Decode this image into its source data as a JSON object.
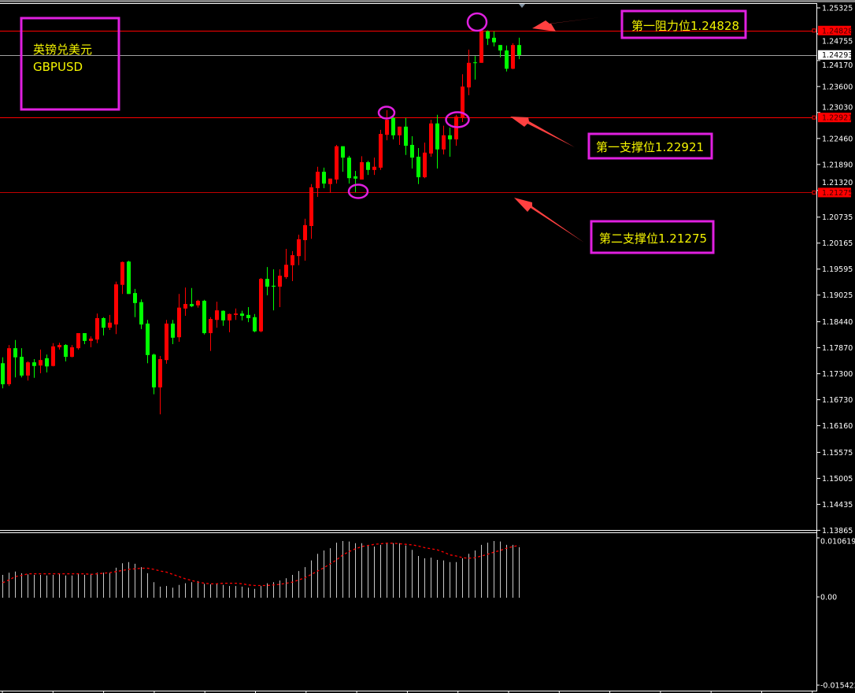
{
  "window": {
    "symbol_cn": "英镑兑美元",
    "symbol": "GBPUSD"
  },
  "annotations": {
    "resistance_1": {
      "label": "第一阻力位1.24828",
      "price": 1.24828
    },
    "support_1": {
      "label": "第一支撑位1.22921",
      "price": 1.22921
    },
    "support_2": {
      "label": "第二支撑位1.21275",
      "price": 1.21275
    },
    "current_price": {
      "label": "1.24293",
      "price": 1.24293
    },
    "box_color": "#e020e0",
    "text_color": "#f5f500",
    "arrow_color": "#ff4040",
    "line_color": "#ff0000"
  },
  "chart_data": [
    {
      "type": "candlestick",
      "title": "",
      "up_color": "#ff0000",
      "down_color": "#00ff00",
      "ylim": [
        1.1375,
        1.2545
      ],
      "grid": false,
      "yticks": [
        "1.25325",
        "1.24755",
        "1.24170",
        "1.23600",
        "1.23030",
        "1.22460",
        "1.21890",
        "1.21320",
        "1.20735",
        "1.20165",
        "1.19595",
        "1.19025",
        "1.18440",
        "1.17870",
        "1.17300",
        "1.16730",
        "1.16160",
        "1.15575",
        "1.15005",
        "1.14435",
        "1.13865"
      ],
      "ohlc": [
        [
          1.1753,
          1.1766,
          1.1698,
          1.1707
        ],
        [
          1.1707,
          1.1793,
          1.1703,
          1.1786
        ],
        [
          1.1786,
          1.1804,
          1.1722,
          1.1766
        ],
        [
          1.1767,
          1.1786,
          1.1722,
          1.1726
        ],
        [
          1.1726,
          1.1757,
          1.1715,
          1.1755
        ],
        [
          1.1755,
          1.1762,
          1.1721,
          1.1747
        ],
        [
          1.1748,
          1.1783,
          1.1731,
          1.176
        ],
        [
          1.1764,
          1.1772,
          1.1733,
          1.1746
        ],
        [
          1.1747,
          1.1797,
          1.1746,
          1.179
        ],
        [
          1.1788,
          1.1798,
          1.1783,
          1.1793
        ],
        [
          1.1793,
          1.1795,
          1.1757,
          1.1767
        ],
        [
          1.1767,
          1.1793,
          1.1766,
          1.1788
        ],
        [
          1.1786,
          1.1819,
          1.1783,
          1.1819
        ],
        [
          1.1819,
          1.1819,
          1.1795,
          1.1802
        ],
        [
          1.1802,
          1.1812,
          1.1788,
          1.1807
        ],
        [
          1.1805,
          1.1862,
          1.1797,
          1.1852
        ],
        [
          1.1852,
          1.1854,
          1.1814,
          1.1831
        ],
        [
          1.1831,
          1.1859,
          1.1826,
          1.1842
        ],
        [
          1.1838,
          1.1932,
          1.1817,
          1.1926
        ],
        [
          1.1925,
          1.1976,
          1.1905,
          1.1975
        ],
        [
          1.1976,
          1.1978,
          1.1905,
          1.1905
        ],
        [
          1.1907,
          1.1916,
          1.1854,
          1.1885
        ],
        [
          1.1887,
          1.1893,
          1.1828,
          1.1838
        ],
        [
          1.184,
          1.1848,
          1.1753,
          1.1771
        ],
        [
          1.1772,
          1.1774,
          1.1685,
          1.17
        ],
        [
          1.17,
          1.1769,
          1.1641,
          1.1762
        ],
        [
          1.176,
          1.1848,
          1.1752,
          1.184
        ],
        [
          1.184,
          1.1848,
          1.1795,
          1.1809
        ],
        [
          1.181,
          1.1905,
          1.18,
          1.1875
        ],
        [
          1.1873,
          1.1919,
          1.1857,
          1.1883
        ],
        [
          1.1883,
          1.1918,
          1.1876,
          1.1878
        ],
        [
          1.188,
          1.1892,
          1.1875,
          1.189
        ],
        [
          1.189,
          1.1892,
          1.1816,
          1.1819
        ],
        [
          1.1819,
          1.1854,
          1.178,
          1.185
        ],
        [
          1.1848,
          1.1888,
          1.1831,
          1.1869
        ],
        [
          1.1868,
          1.1869,
          1.1835,
          1.1847
        ],
        [
          1.1847,
          1.1862,
          1.1821,
          1.1861
        ],
        [
          1.1859,
          1.1873,
          1.1848,
          1.1862
        ],
        [
          1.1862,
          1.1868,
          1.1847,
          1.1857
        ],
        [
          1.1859,
          1.1876,
          1.1843,
          1.1852
        ],
        [
          1.1854,
          1.1861,
          1.1821,
          1.1823
        ],
        [
          1.1823,
          1.194,
          1.1821,
          1.1938
        ],
        [
          1.1938,
          1.1964,
          1.1902,
          1.1921
        ],
        [
          1.1923,
          1.1959,
          1.1869,
          1.1921
        ],
        [
          1.1921,
          1.1959,
          1.1876,
          1.1945
        ],
        [
          1.1942,
          1.2004,
          1.1938,
          1.1969
        ],
        [
          1.1968,
          1.1999,
          1.1933,
          1.199
        ],
        [
          1.1988,
          1.2035,
          1.1968,
          1.2025
        ],
        [
          1.2023,
          1.207,
          1.1978,
          1.2056
        ],
        [
          1.2054,
          1.2146,
          1.2026,
          1.2139
        ],
        [
          1.2137,
          1.2184,
          1.2118,
          1.2173
        ],
        [
          1.2173,
          1.2182,
          1.2137,
          1.2147
        ],
        [
          1.2146,
          1.2158,
          1.2127,
          1.2158
        ],
        [
          1.2156,
          1.2232,
          1.2147,
          1.2229
        ],
        [
          1.2229,
          1.2229,
          1.2173,
          1.2204
        ],
        [
          1.2204,
          1.2208,
          1.2147,
          1.2159
        ],
        [
          1.2163,
          1.2175,
          1.2128,
          1.2158
        ],
        [
          1.2156,
          1.2207,
          1.2156,
          1.2194
        ],
        [
          1.2194,
          1.2197,
          1.2166,
          1.2177
        ],
        [
          1.2177,
          1.2204,
          1.2166,
          1.2184
        ],
        [
          1.2182,
          1.2265,
          1.2177,
          1.2256
        ],
        [
          1.2254,
          1.2308,
          1.2242,
          1.2287
        ],
        [
          1.2291,
          1.2293,
          1.2244,
          1.2253
        ],
        [
          1.2253,
          1.2272,
          1.2232,
          1.2272
        ],
        [
          1.2272,
          1.2291,
          1.221,
          1.223
        ],
        [
          1.2232,
          1.2251,
          1.218,
          1.2204
        ],
        [
          1.2206,
          1.2225,
          1.2146,
          1.2161
        ],
        [
          1.2161,
          1.2237,
          1.2159,
          1.2215
        ],
        [
          1.2213,
          1.2287,
          1.2206,
          1.2279
        ],
        [
          1.2279,
          1.2298,
          1.218,
          1.2222
        ],
        [
          1.2222,
          1.2274,
          1.2211,
          1.2253
        ],
        [
          1.2253,
          1.227,
          1.2206,
          1.2244
        ],
        [
          1.2244,
          1.2298,
          1.223,
          1.2294
        ],
        [
          1.2291,
          1.2387,
          1.2282,
          1.236
        ],
        [
          1.2358,
          1.2441,
          1.2341,
          1.2412
        ],
        [
          1.2413,
          1.2427,
          1.2375,
          1.2412
        ],
        [
          1.2412,
          1.2483,
          1.2412,
          1.2483
        ],
        [
          1.2481,
          1.2483,
          1.2451,
          1.2465
        ],
        [
          1.2467,
          1.2481,
          1.2448,
          1.2457
        ],
        [
          1.2451,
          1.2451,
          1.2424,
          1.2439
        ],
        [
          1.2439,
          1.245,
          1.2393,
          1.2399
        ],
        [
          1.2399,
          1.2455,
          1.2398,
          1.2451
        ],
        [
          1.2451,
          1.2467,
          1.242,
          1.2429
        ]
      ]
    },
    {
      "type": "bar",
      "title": "",
      "ylim": [
        -0.015422,
        0.010619
      ],
      "yticks": [
        "0.010619",
        "0.00",
        "-0.015422"
      ],
      "histogram_color": "#c8c8c8",
      "signal_color": "#ff0000",
      "histogram": [
        0.0041,
        0.0045,
        0.0047,
        0.0044,
        0.0042,
        0.0041,
        0.0041,
        0.004,
        0.0041,
        0.0043,
        0.004,
        0.004,
        0.0043,
        0.0041,
        0.0043,
        0.0045,
        0.0045,
        0.0045,
        0.0054,
        0.0062,
        0.0064,
        0.0061,
        0.0055,
        0.0044,
        0.0028,
        0.002,
        0.0021,
        0.0018,
        0.0023,
        0.0026,
        0.0028,
        0.003,
        0.0025,
        0.0024,
        0.0024,
        0.0023,
        0.0021,
        0.0021,
        0.002,
        0.0018,
        0.0016,
        0.0021,
        0.0026,
        0.0028,
        0.0031,
        0.0035,
        0.0041,
        0.0048,
        0.0055,
        0.0067,
        0.0079,
        0.0085,
        0.0089,
        0.0099,
        0.0102,
        0.0101,
        0.0098,
        0.0098,
        0.0094,
        0.0092,
        0.0095,
        0.0099,
        0.0098,
        0.0098,
        0.0094,
        0.0086,
        0.0075,
        0.0071,
        0.0072,
        0.0068,
        0.0067,
        0.0064,
        0.0064,
        0.0071,
        0.0079,
        0.0085,
        0.0095,
        0.0099,
        0.0102,
        0.0101,
        0.0095,
        0.0095,
        0.0091
      ],
      "signal": [
        0.0027,
        0.0032,
        0.0038,
        0.004,
        0.0043,
        0.0043,
        0.0043,
        0.0043,
        0.0043,
        0.0043,
        0.0043,
        0.0043,
        0.0043,
        0.0043,
        0.0042,
        0.0043,
        0.0044,
        0.0045,
        0.0047,
        0.0049,
        0.0051,
        0.0052,
        0.0053,
        0.0053,
        0.0051,
        0.0048,
        0.0046,
        0.0042,
        0.0038,
        0.0034,
        0.0031,
        0.0028,
        0.0026,
        0.0025,
        0.0025,
        0.0026,
        0.0026,
        0.0026,
        0.0025,
        0.0023,
        0.0022,
        0.0022,
        0.0022,
        0.0023,
        0.0024,
        0.0026,
        0.0028,
        0.0032,
        0.0036,
        0.0042,
        0.0048,
        0.0054,
        0.0061,
        0.0068,
        0.0077,
        0.0083,
        0.0088,
        0.0092,
        0.0094,
        0.0096,
        0.0097,
        0.0098,
        0.0098,
        0.0097,
        0.0096,
        0.0095,
        0.0093,
        0.009,
        0.0088,
        0.0086,
        0.0082,
        0.0077,
        0.0075,
        0.0072,
        0.0071,
        0.0072,
        0.0075,
        0.0078,
        0.0082,
        0.0085,
        0.0089,
        0.0092,
        0.0094
      ]
    }
  ]
}
